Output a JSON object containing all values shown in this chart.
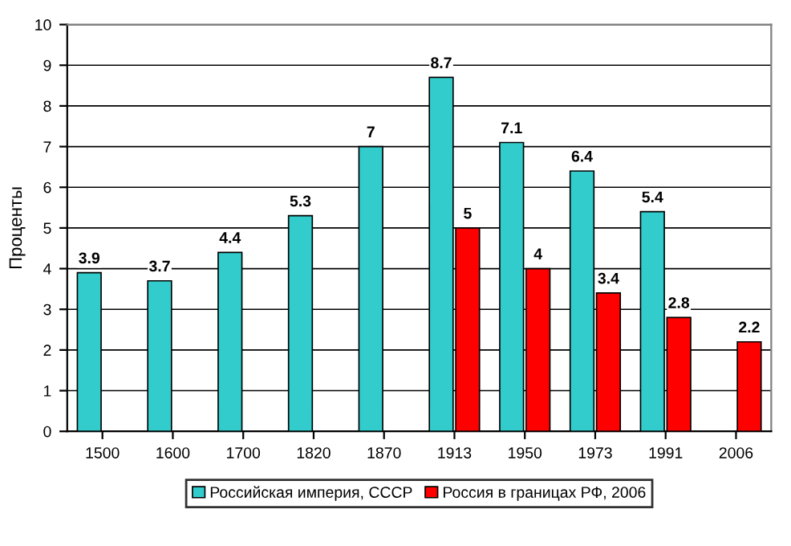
{
  "chart_data": {
    "type": "bar",
    "ylabel": "Проценты",
    "categories": [
      "1500",
      "1600",
      "1700",
      "1820",
      "1870",
      "1913",
      "1950",
      "1973",
      "1991",
      "2006"
    ],
    "series": [
      {
        "name": "Российская империя, СССР",
        "color": "#33cccc",
        "values": [
          3.9,
          3.7,
          4.4,
          5.3,
          7,
          8.7,
          7.1,
          6.4,
          5.4,
          null
        ]
      },
      {
        "name": "Россия в границах РФ, 2006",
        "color": "#ff0000",
        "values": [
          null,
          null,
          null,
          null,
          null,
          5,
          4,
          3.4,
          2.8,
          2.2
        ]
      }
    ],
    "ylim": [
      0,
      10
    ],
    "yticks": [
      0,
      1,
      2,
      3,
      4,
      5,
      6,
      7,
      8,
      9,
      10
    ],
    "grid": "y",
    "legend": "bottom",
    "data_labels": true
  }
}
